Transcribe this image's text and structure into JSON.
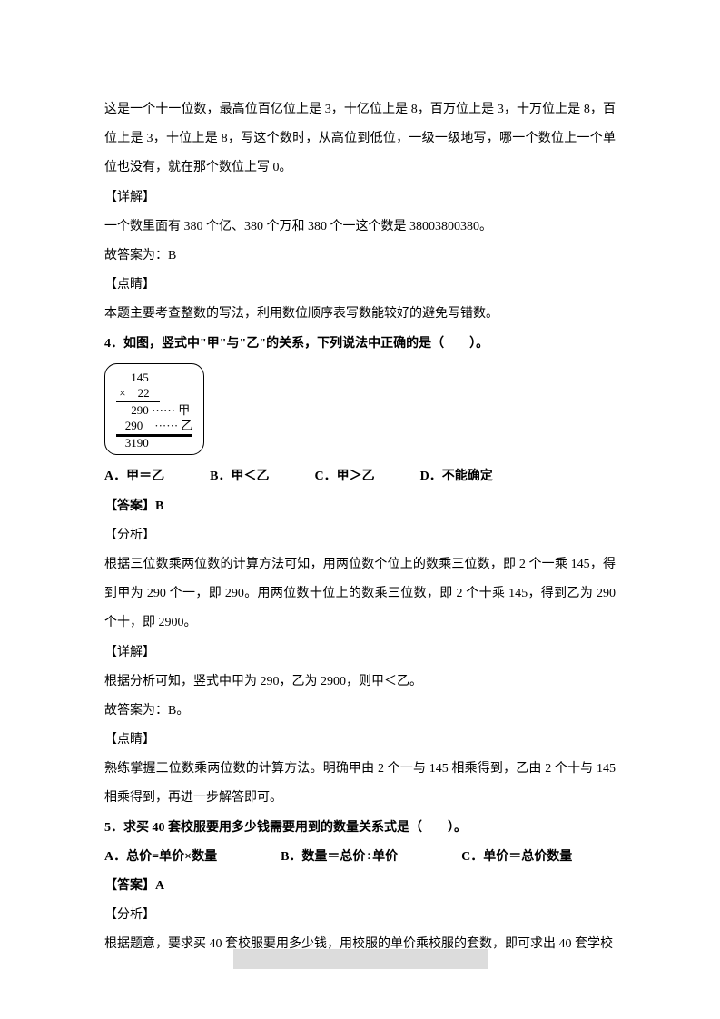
{
  "intro": {
    "p1": "这是一个十一位数，最高位百亿位上是 3，十亿位上是 8，百万位上是 3，十万位上是 8，百位上是 3，十位上是 8，写这个数时，从高位到低位，一级一级地写，哪一个数位上一个单位也没有，就在那个数位上写 0。",
    "detailLabel": "【详解】",
    "detail": "一个数里面有 380 个亿、380 个万和 380 个一这个数是 38003800380。",
    "answerLine": "故答案为：B",
    "dianjiLabel": "【点睛】",
    "dianji": "本题主要考查整数的写法，利用数位顺序表写数能较好的避免写错数。"
  },
  "q4": {
    "stem": "4．如图，竖式中\"甲\"与\"乙\"的关系，下列说法中正确的是（　　）。",
    "mult": {
      "l1": "145",
      "l2": "×　22",
      "l3": "290 ······ 甲",
      "l4": "290　······ 乙",
      "l5": "3190"
    },
    "opts": {
      "a": "A．甲＝乙",
      "b": "B．甲＜乙",
      "c": "C．甲＞乙",
      "d": "D．不能确定"
    },
    "answerLabel": "【答案】B",
    "fenxiLabel": "【分析】",
    "fenxi": "根据三位数乘两位数的计算方法可知，用两位数个位上的数乘三位数，即 2 个一乘 145，得到甲为 290 个一，即 290。用两位数十位上的数乘三位数，即 2 个十乘 145，得到乙为 290 个十，即 2900。",
    "detailLabel": "【详解】",
    "detail": "根据分析可知，竖式中甲为 290，乙为 2900，则甲＜乙。",
    "answerLine": "故答案为：B。",
    "dianjiLabel": "【点睛】",
    "dianji": "熟练掌握三位数乘两位数的计算方法。明确甲由 2 个一与 145 相乘得到，乙由 2 个十与 145 相乘得到，再进一步解答即可。"
  },
  "q5": {
    "stem": "5．求买 40 套校服要用多少钱需要用到的数量关系式是（　　）。",
    "opts": {
      "a": "A．总价=单价×数量",
      "b": "B．数量＝总价÷单价",
      "c": "C．单价＝总价数量"
    },
    "answerLabel": "【答案】A",
    "fenxiLabel": "【分析】",
    "fenxi": "根据题意，要求买 40 套校服要用多少钱，用校服的单价乘校服的套数，即可求出 40 套学校"
  }
}
